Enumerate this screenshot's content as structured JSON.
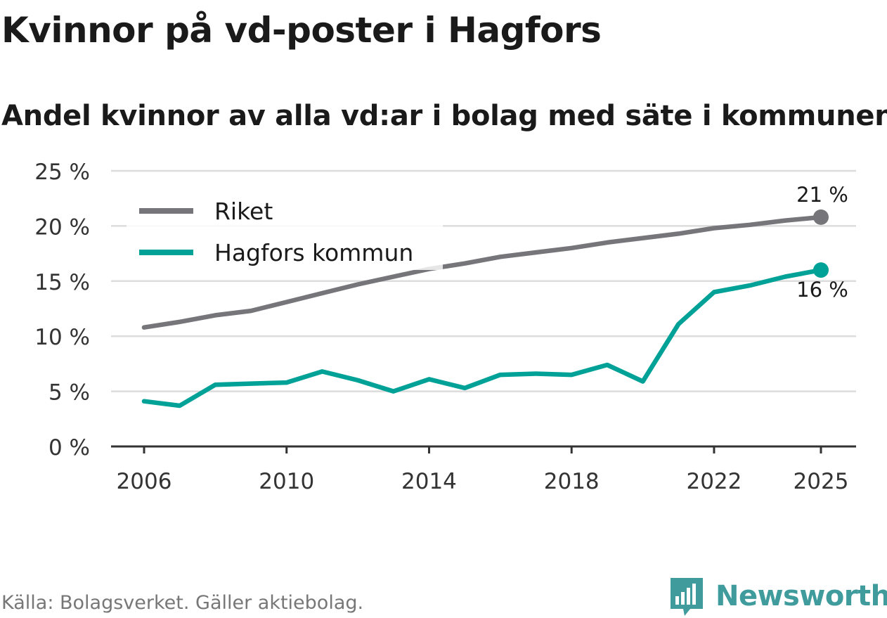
{
  "title": "Kvinnor på vd-poster i Hagfors",
  "subtitle": "Andel kvinnor av alla vd:ar i bolag med säte i kommunen",
  "source": "Källa: Bolagsverket. Gäller aktiebolag.",
  "brand": {
    "name": "Newsworthy",
    "icon": "newsworthy-logo-icon",
    "color": "#3f9b9c"
  },
  "chart_data": {
    "type": "line",
    "title": "Kvinnor på vd-poster i Hagfors",
    "subtitle": "Andel kvinnor av alla vd:ar i bolag med säte i kommunen",
    "xlabel": "",
    "ylabel": "",
    "x": [
      2006,
      2007,
      2008,
      2009,
      2010,
      2011,
      2012,
      2013,
      2014,
      2015,
      2016,
      2017,
      2018,
      2019,
      2020,
      2021,
      2022,
      2023,
      2024,
      2025
    ],
    "x_ticks": [
      2006,
      2010,
      2014,
      2018,
      2022,
      2025
    ],
    "y_ticks": [
      0,
      5,
      10,
      15,
      20,
      25
    ],
    "y_tick_labels": [
      "0 %",
      "5 %",
      "10 %",
      "15 %",
      "20 %",
      "25 %"
    ],
    "ylim": [
      0,
      25
    ],
    "xlim": [
      2006,
      2025
    ],
    "grid": true,
    "legend": "top-left",
    "series": [
      {
        "name": "Riket",
        "color": "#76757a",
        "values": [
          10.8,
          11.3,
          11.9,
          12.3,
          13.1,
          13.9,
          14.7,
          15.4,
          16.1,
          16.6,
          17.2,
          17.6,
          18.0,
          18.5,
          18.9,
          19.3,
          19.8,
          20.1,
          20.5,
          20.8
        ],
        "end_label": "21 %"
      },
      {
        "name": "Hagfors kommun",
        "color": "#00a297",
        "values": [
          4.1,
          3.7,
          5.6,
          5.7,
          5.8,
          6.8,
          6.0,
          5.0,
          6.1,
          5.3,
          6.5,
          6.6,
          6.5,
          7.4,
          5.9,
          11.1,
          14.0,
          14.6,
          15.4,
          16.0
        ],
        "end_label": "16 %"
      }
    ]
  }
}
